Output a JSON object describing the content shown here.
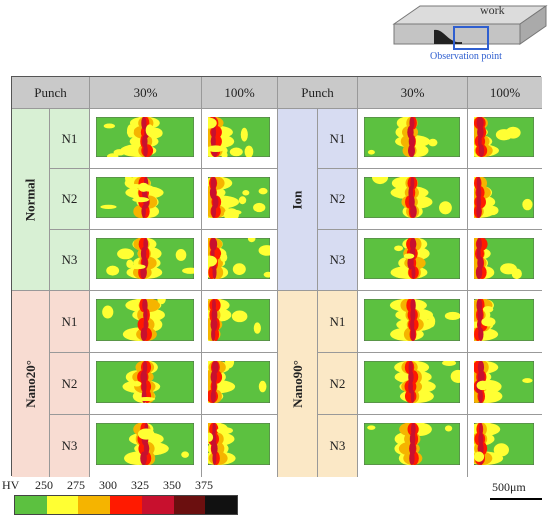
{
  "inset": {
    "work_label": "work",
    "observation_label": "Observation point"
  },
  "headers": {
    "punch_left": "Punch",
    "p30_left": "30%",
    "p100_left": "100%",
    "punch_right": "Punch",
    "p30_right": "30%",
    "p100_right": "100%"
  },
  "groups": {
    "normal": "Normal",
    "ion": "Ion",
    "nano20": "Nano20°",
    "nano90": "Nano90°"
  },
  "rows": {
    "n1": "N1",
    "n2": "N2",
    "n3": "N3"
  },
  "legend": {
    "hv": "HV",
    "ticks": [
      "250",
      "275",
      "300",
      "325",
      "350",
      "375"
    ],
    "colors": [
      "#5cc140",
      "#ffff33",
      "#f5b400",
      "#ff1a00",
      "#c8102e",
      "#6b0f0f",
      "#111111"
    ]
  },
  "scale": {
    "label": "500μm"
  },
  "colors": {
    "normal": "#d8f0d4",
    "ion": "#d7dcf2",
    "nano20": "#f8dcd2",
    "nano90": "#fbe8c6",
    "header": "#c9c9c9"
  }
}
